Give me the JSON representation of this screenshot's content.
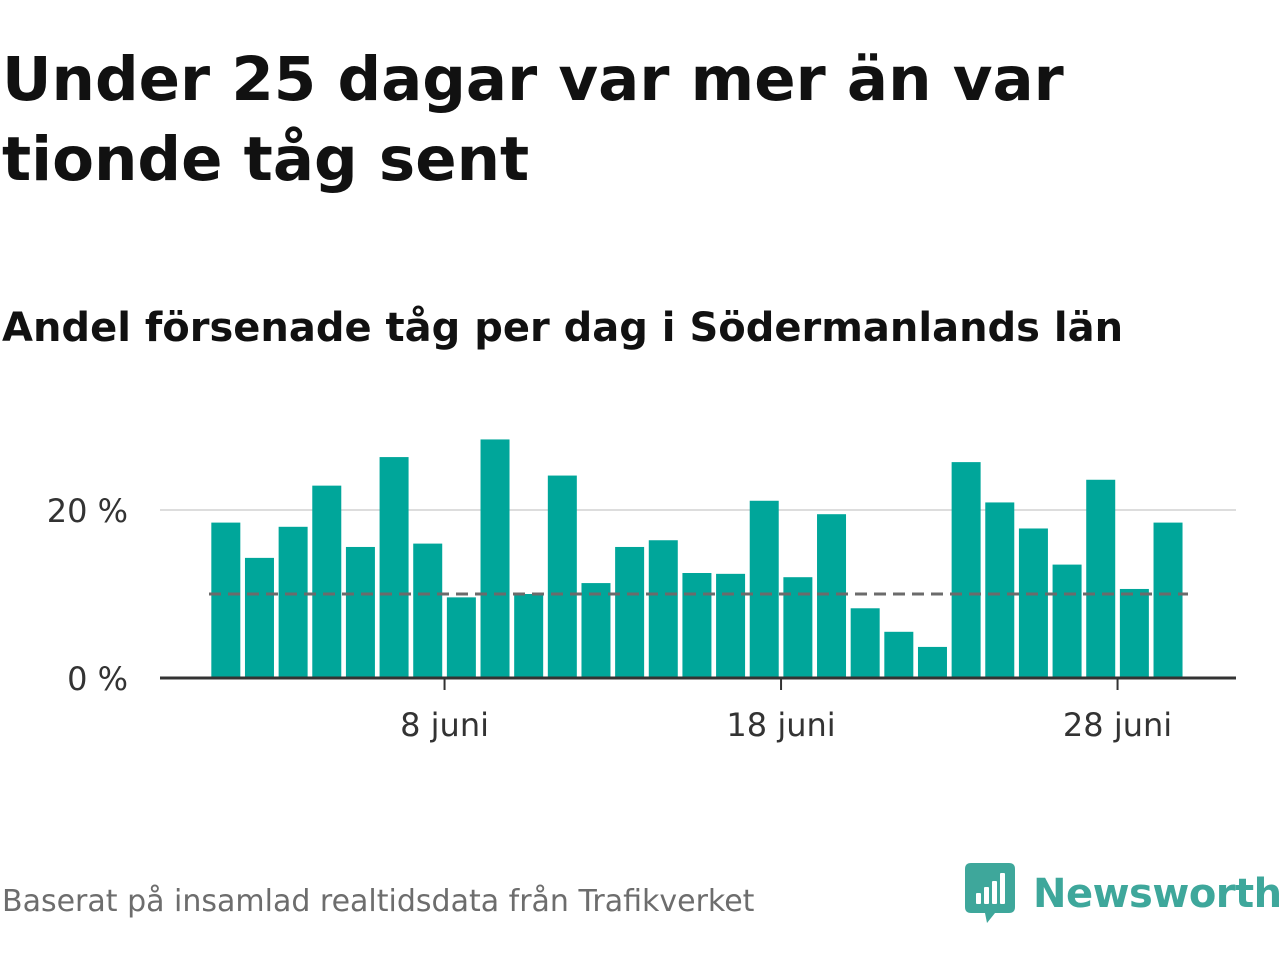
{
  "title": "Under 25 dagar var mer än var tionde tåg sent",
  "subtitle": "Andel försenade tåg per dag i Södermanlands län",
  "source": "Baserat på insamlad realtidsdata från Trafikverket",
  "logo": {
    "name": "Newsworthy",
    "icon": "bar-chart-speech-bubble-icon"
  },
  "colors": {
    "bar": "#00a69a",
    "reference_line": "#6b6b6b",
    "grid": "#dddddd",
    "axis": "#333333",
    "logo": "#3ea79b"
  },
  "chart_data": {
    "type": "bar",
    "x": [
      "2025-06-01",
      "2025-06-02",
      "2025-06-03",
      "2025-06-04",
      "2025-06-05",
      "2025-06-06",
      "2025-06-07",
      "2025-06-08",
      "2025-06-09",
      "2025-06-10",
      "2025-06-11",
      "2025-06-12",
      "2025-06-13",
      "2025-06-14",
      "2025-06-15",
      "2025-06-16",
      "2025-06-17",
      "2025-06-18",
      "2025-06-19",
      "2025-06-20",
      "2025-06-21",
      "2025-06-22",
      "2025-06-23",
      "2025-06-24",
      "2025-06-25",
      "2025-06-26",
      "2025-06-27",
      "2025-06-28",
      "2025-06-29"
    ],
    "values": [
      18.5,
      14.3,
      18,
      22.9,
      15.6,
      26.3,
      16,
      9.6,
      28.4,
      10,
      24.1,
      11.3,
      15.6,
      16.4,
      12.5,
      12.4,
      21.1,
      12,
      19.5,
      8.3,
      5.5,
      3.7,
      25.7,
      20.9,
      17.8,
      13.5,
      23.6,
      10.6,
      18.5
    ],
    "reference_line": {
      "value": 10,
      "style": "dashed"
    },
    "ylim": [
      0,
      30
    ],
    "yticks": [
      0,
      20
    ],
    "ytick_labels": [
      "0 %",
      "20 %"
    ],
    "xticks": [
      "2025-06-08",
      "2025-06-18",
      "2025-06-28"
    ],
    "xtick_labels": [
      "8 juni",
      "18 juni",
      "28 juni"
    ],
    "grid": "horizontal",
    "legend": "none"
  }
}
